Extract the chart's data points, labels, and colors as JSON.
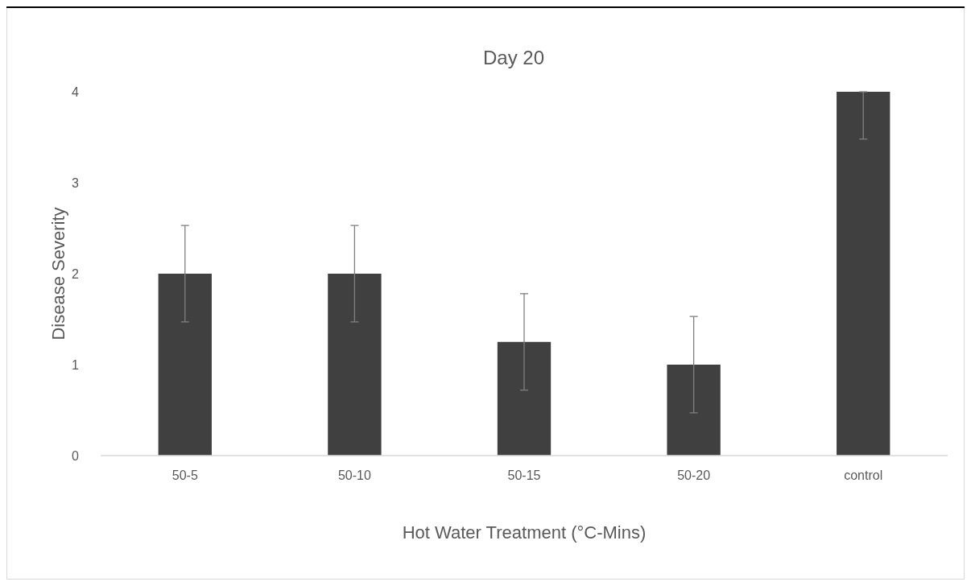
{
  "chart_data": {
    "type": "bar",
    "title": "Day 20",
    "xlabel": "Hot Water Treatment (°C-Mins)",
    "ylabel": "Disease Severity",
    "categories": [
      "50-5",
      "50-10",
      "50-15",
      "50-20",
      "control"
    ],
    "values": [
      2,
      2,
      1.25,
      1,
      4
    ],
    "errors": [
      0.53,
      0.53,
      0.53,
      0.53,
      [
        3.48,
        4
      ]
    ],
    "color": "#404040",
    "ylim": [
      0,
      4
    ],
    "yticks": [
      0,
      1,
      2,
      3,
      4
    ],
    "grid": false
  }
}
